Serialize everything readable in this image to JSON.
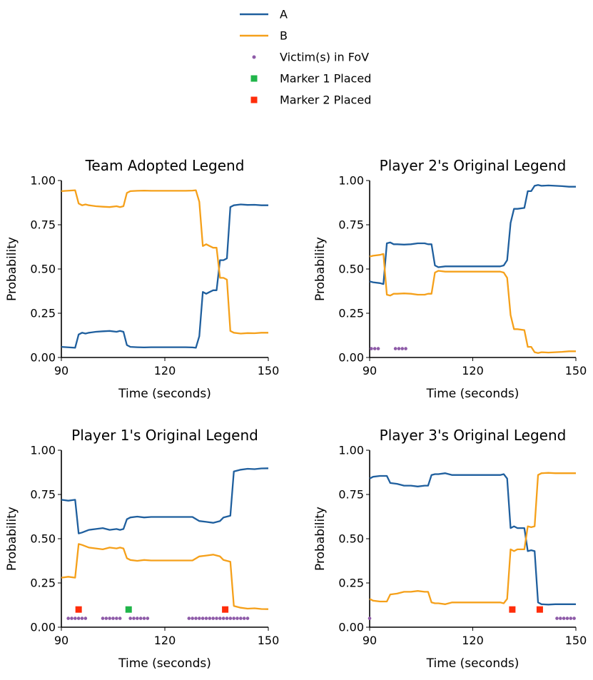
{
  "legend": {
    "placement": "top-center",
    "entries": [
      {
        "label": "A",
        "marker": "line",
        "color": "#1f5f9e"
      },
      {
        "label": "B",
        "marker": "line",
        "color": "#f5a01a"
      },
      {
        "label": "Victim(s) in FoV",
        "marker": "dot",
        "color": "#8e5ba8"
      },
      {
        "label": "Marker 1 Placed",
        "marker": "square",
        "color": "#20b54a"
      },
      {
        "label": "Marker 2 Placed",
        "marker": "square",
        "color": "#ff2d0a"
      }
    ]
  },
  "chart_data": [
    {
      "type": "line",
      "title": "Team Adopted Legend",
      "xlabel": "Time (seconds)",
      "ylabel": "Probability",
      "xlim": [
        90,
        150
      ],
      "ylim": [
        0,
        1
      ],
      "xticks": [
        90,
        120,
        150
      ],
      "xtick_labels": [
        "90",
        "120",
        "150"
      ],
      "yticks": [
        0,
        0.25,
        0.5,
        0.75,
        1
      ],
      "ytick_labels": [
        "0.00",
        "0.25",
        "0.50",
        "0.75",
        "1.00"
      ],
      "grid": false,
      "series": [
        {
          "name": "A",
          "color": "#1f5f9e",
          "x": [
            90,
            94,
            95,
            96,
            97,
            98,
            100,
            102,
            104,
            106,
            107,
            108,
            109,
            110,
            112,
            114,
            116,
            118,
            120,
            122,
            124,
            126,
            128,
            129,
            130,
            131,
            132,
            133,
            134,
            135,
            136,
            137,
            138,
            139,
            140,
            142,
            144,
            146,
            148,
            150
          ],
          "y": [
            0.06,
            0.055,
            0.13,
            0.14,
            0.135,
            0.14,
            0.145,
            0.148,
            0.15,
            0.145,
            0.15,
            0.145,
            0.07,
            0.06,
            0.058,
            0.057,
            0.058,
            0.058,
            0.058,
            0.058,
            0.058,
            0.058,
            0.057,
            0.055,
            0.12,
            0.37,
            0.36,
            0.37,
            0.38,
            0.38,
            0.55,
            0.55,
            0.56,
            0.85,
            0.86,
            0.865,
            0.862,
            0.863,
            0.86,
            0.86
          ]
        },
        {
          "name": "B",
          "color": "#f5a01a",
          "x": [
            90,
            94,
            95,
            96,
            97,
            98,
            100,
            102,
            104,
            106,
            107,
            108,
            109,
            110,
            112,
            114,
            116,
            118,
            120,
            122,
            124,
            126,
            128,
            129,
            130,
            131,
            132,
            133,
            134,
            135,
            136,
            137,
            138,
            139,
            140,
            142,
            144,
            146,
            148,
            150
          ],
          "y": [
            0.94,
            0.945,
            0.87,
            0.86,
            0.865,
            0.86,
            0.855,
            0.852,
            0.85,
            0.855,
            0.85,
            0.855,
            0.93,
            0.94,
            0.942,
            0.943,
            0.942,
            0.942,
            0.942,
            0.942,
            0.942,
            0.942,
            0.943,
            0.945,
            0.88,
            0.63,
            0.64,
            0.63,
            0.62,
            0.62,
            0.45,
            0.45,
            0.44,
            0.15,
            0.14,
            0.135,
            0.138,
            0.137,
            0.14,
            0.14
          ]
        }
      ],
      "markers": []
    },
    {
      "type": "line",
      "title": "Player 2's Original Legend",
      "xlabel": "Time (seconds)",
      "ylabel": "Probability",
      "xlim": [
        90,
        150
      ],
      "ylim": [
        0,
        1
      ],
      "xticks": [
        90,
        120,
        150
      ],
      "xtick_labels": [
        "90",
        "120",
        "150"
      ],
      "yticks": [
        0,
        0.25,
        0.5,
        0.75,
        1
      ],
      "ytick_labels": [
        "0.00",
        "0.25",
        "0.50",
        "0.75",
        "1.00"
      ],
      "grid": false,
      "series": [
        {
          "name": "A",
          "color": "#1f5f9e",
          "x": [
            90,
            91,
            93,
            94,
            95,
            96,
            97,
            98,
            100,
            102,
            104,
            106,
            107,
            108,
            109,
            110,
            112,
            114,
            116,
            118,
            120,
            122,
            124,
            126,
            128,
            129,
            130,
            131,
            132,
            133,
            135,
            136,
            137,
            138,
            139,
            140,
            142,
            144,
            146,
            148,
            150
          ],
          "y": [
            0.43,
            0.425,
            0.42,
            0.415,
            0.645,
            0.65,
            0.64,
            0.64,
            0.638,
            0.64,
            0.645,
            0.645,
            0.64,
            0.64,
            0.52,
            0.51,
            0.515,
            0.515,
            0.515,
            0.515,
            0.515,
            0.515,
            0.515,
            0.515,
            0.515,
            0.52,
            0.55,
            0.76,
            0.84,
            0.84,
            0.845,
            0.94,
            0.94,
            0.97,
            0.975,
            0.97,
            0.972,
            0.97,
            0.968,
            0.965,
            0.965
          ]
        },
        {
          "name": "B",
          "color": "#f5a01a",
          "x": [
            90,
            91,
            93,
            94,
            95,
            96,
            97,
            98,
            100,
            102,
            104,
            106,
            107,
            108,
            109,
            110,
            112,
            114,
            116,
            118,
            120,
            122,
            124,
            126,
            128,
            129,
            130,
            131,
            132,
            133,
            135,
            136,
            137,
            138,
            139,
            140,
            142,
            144,
            146,
            148,
            150
          ],
          "y": [
            0.57,
            0.575,
            0.58,
            0.585,
            0.355,
            0.35,
            0.36,
            0.36,
            0.362,
            0.36,
            0.355,
            0.355,
            0.36,
            0.36,
            0.48,
            0.49,
            0.485,
            0.485,
            0.485,
            0.485,
            0.485,
            0.485,
            0.485,
            0.485,
            0.485,
            0.48,
            0.45,
            0.24,
            0.16,
            0.16,
            0.155,
            0.06,
            0.06,
            0.03,
            0.025,
            0.03,
            0.028,
            0.03,
            0.032,
            0.035,
            0.035
          ]
        }
      ],
      "markers": [
        {
          "label": "Victim(s) in FoV",
          "color": "#8e5ba8",
          "y": 0.05,
          "x": [
            90.5,
            91.5,
            92.5,
            97.5,
            98.5,
            99.5,
            100.5
          ]
        }
      ]
    },
    {
      "type": "line",
      "title": "Player 1's Original Legend",
      "xlabel": "Time (seconds)",
      "ylabel": "Probability",
      "xlim": [
        90,
        150
      ],
      "ylim": [
        0,
        1
      ],
      "xticks": [
        90,
        120,
        150
      ],
      "xtick_labels": [
        "90",
        "120",
        "150"
      ],
      "yticks": [
        0,
        0.25,
        0.5,
        0.75,
        1
      ],
      "ytick_labels": [
        "0.00",
        "0.25",
        "0.50",
        "0.75",
        "1.00"
      ],
      "grid": false,
      "series": [
        {
          "name": "A",
          "color": "#1f5f9e",
          "x": [
            90,
            92,
            94,
            95,
            96,
            98,
            100,
            102,
            104,
            106,
            107,
            108,
            109,
            110,
            112,
            114,
            116,
            118,
            120,
            122,
            124,
            126,
            128,
            130,
            132,
            134,
            136,
            137,
            138,
            139,
            140,
            142,
            144,
            146,
            148,
            150
          ],
          "y": [
            0.72,
            0.715,
            0.72,
            0.53,
            0.535,
            0.55,
            0.555,
            0.56,
            0.55,
            0.555,
            0.55,
            0.555,
            0.61,
            0.62,
            0.625,
            0.62,
            0.623,
            0.623,
            0.623,
            0.623,
            0.623,
            0.623,
            0.623,
            0.6,
            0.595,
            0.59,
            0.6,
            0.62,
            0.625,
            0.63,
            0.88,
            0.89,
            0.895,
            0.893,
            0.897,
            0.898
          ]
        },
        {
          "name": "B",
          "color": "#f5a01a",
          "x": [
            90,
            92,
            94,
            95,
            96,
            98,
            100,
            102,
            104,
            106,
            107,
            108,
            109,
            110,
            112,
            114,
            116,
            118,
            120,
            122,
            124,
            126,
            128,
            130,
            132,
            134,
            136,
            137,
            138,
            139,
            140,
            142,
            144,
            146,
            148,
            150
          ],
          "y": [
            0.28,
            0.285,
            0.28,
            0.47,
            0.465,
            0.45,
            0.445,
            0.44,
            0.45,
            0.445,
            0.45,
            0.445,
            0.39,
            0.38,
            0.375,
            0.38,
            0.377,
            0.377,
            0.377,
            0.377,
            0.377,
            0.377,
            0.377,
            0.4,
            0.405,
            0.41,
            0.4,
            0.38,
            0.375,
            0.37,
            0.12,
            0.11,
            0.105,
            0.107,
            0.103,
            0.102
          ]
        }
      ],
      "markers": [
        {
          "label": "Victim(s) in FoV",
          "color": "#8e5ba8",
          "y": 0.05,
          "x": [
            92,
            93,
            94,
            95,
            96,
            97,
            102,
            103,
            104,
            105,
            106,
            107,
            110,
            111,
            112,
            113,
            114,
            115,
            127,
            128,
            129,
            130,
            131,
            132,
            133,
            134,
            135,
            136,
            137,
            138,
            139,
            140,
            141,
            142,
            143,
            144
          ]
        },
        {
          "label": "Marker 1 Placed",
          "color": "#20b54a",
          "y": 0.1,
          "x": [
            109.5
          ]
        },
        {
          "label": "Marker 2 Placed",
          "color": "#ff2d0a",
          "y": 0.1,
          "x": [
            95,
            137.5
          ]
        }
      ]
    },
    {
      "type": "line",
      "title": "Player 3's Original Legend",
      "xlabel": "Time (seconds)",
      "ylabel": "Probability",
      "xlim": [
        90,
        150
      ],
      "ylim": [
        0,
        1
      ],
      "xticks": [
        90,
        120,
        150
      ],
      "xtick_labels": [
        "90",
        "120",
        "150"
      ],
      "yticks": [
        0,
        0.25,
        0.5,
        0.75,
        1
      ],
      "ytick_labels": [
        "0.00",
        "0.25",
        "0.50",
        "0.75",
        "1.00"
      ],
      "grid": false,
      "series": [
        {
          "name": "A",
          "color": "#1f5f9e",
          "x": [
            90,
            91,
            93,
            95,
            96,
            98,
            100,
            102,
            104,
            106,
            107,
            108,
            109,
            110,
            112,
            114,
            116,
            118,
            120,
            122,
            124,
            126,
            128,
            129,
            130,
            131,
            132,
            133,
            135,
            136,
            137,
            138,
            139,
            140,
            142,
            144,
            146,
            148,
            150
          ],
          "y": [
            0.84,
            0.85,
            0.855,
            0.855,
            0.815,
            0.81,
            0.8,
            0.8,
            0.795,
            0.8,
            0.8,
            0.86,
            0.865,
            0.865,
            0.87,
            0.86,
            0.86,
            0.86,
            0.86,
            0.86,
            0.86,
            0.86,
            0.86,
            0.865,
            0.84,
            0.56,
            0.57,
            0.56,
            0.56,
            0.43,
            0.435,
            0.43,
            0.14,
            0.13,
            0.128,
            0.13,
            0.13,
            0.13,
            0.13
          ]
        },
        {
          "name": "B",
          "color": "#f5a01a",
          "x": [
            90,
            91,
            93,
            95,
            96,
            98,
            100,
            102,
            104,
            106,
            107,
            108,
            109,
            110,
            112,
            114,
            116,
            118,
            120,
            122,
            124,
            126,
            128,
            129,
            130,
            131,
            132,
            133,
            135,
            136,
            137,
            138,
            139,
            140,
            142,
            144,
            146,
            148,
            150
          ],
          "y": [
            0.16,
            0.15,
            0.145,
            0.145,
            0.185,
            0.19,
            0.2,
            0.2,
            0.205,
            0.2,
            0.2,
            0.14,
            0.135,
            0.135,
            0.13,
            0.14,
            0.14,
            0.14,
            0.14,
            0.14,
            0.14,
            0.14,
            0.14,
            0.135,
            0.16,
            0.44,
            0.43,
            0.44,
            0.44,
            0.57,
            0.565,
            0.57,
            0.86,
            0.87,
            0.872,
            0.87,
            0.87,
            0.87,
            0.87
          ]
        }
      ],
      "markers": [
        {
          "label": "Victim(s) in FoV",
          "color": "#8e5ba8",
          "y": 0.05,
          "x": [
            90,
            144.5,
            145.5,
            146.5,
            147.5,
            148.5,
            149.5
          ]
        },
        {
          "label": "Marker 2 Placed",
          "color": "#ff2d0a",
          "y": 0.1,
          "x": [
            131.5,
            139.5
          ]
        }
      ]
    }
  ]
}
